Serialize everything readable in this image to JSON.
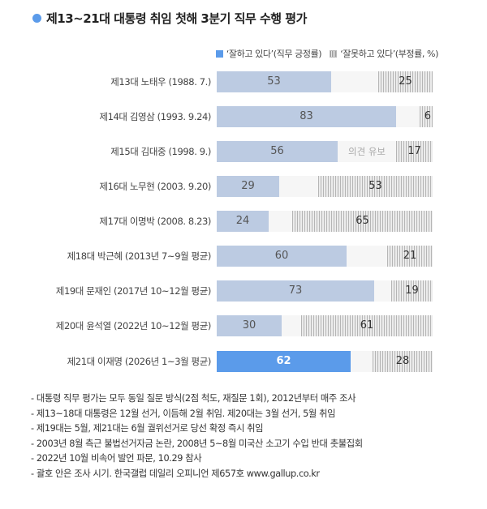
{
  "title": "제13~21대 대통령 취임 첫해 3분기 직무 수행 평가",
  "legend": {
    "positive": "‘잘하고 있다’(직무 긍정률)",
    "negative": "‘잘못하고 있다’(부정률, %)"
  },
  "undecided_label": "의견 유보",
  "colors": {
    "positive": "#bccbe2",
    "positive_current": "#5b9bea",
    "negative_hatch": "#b5b5b5",
    "title_dot": "#5b9bea"
  },
  "chart_data": {
    "type": "bar",
    "orientation": "horizontal-stacked",
    "title": "제13~21대 대통령 취임 첫해 3분기 직무 수행 평가",
    "xlabel": "",
    "ylabel": "",
    "xlim": [
      0,
      100
    ],
    "grid": false,
    "legend_position": "top-right",
    "categories": [
      "제13대 노태우 (1988. 7.)",
      "제14대 김영삼 (1993. 9.24)",
      "제15대 김대중 (1998. 9.)",
      "제16대 노무현 (2003. 9.20)",
      "제17대 이명박 (2008. 8.23)",
      "제18대 박근혜 (2013년 7~9월 평균)",
      "제19대 문재인 (2017년 10~12월 평균)",
      "제20대 윤석열 (2022년 10~12월 평균)",
      "제21대 이재명 (2026년 1~3월 평균)"
    ],
    "series": [
      {
        "name": "‘잘하고 있다’(직무 긍정률)",
        "values": [
          53,
          83,
          56,
          29,
          24,
          60,
          73,
          30,
          62
        ]
      },
      {
        "name": "의견 유보",
        "values": [
          22,
          11,
          27,
          18,
          11,
          19,
          8,
          9,
          10
        ]
      },
      {
        "name": "‘잘못하고 있다’(부정률, %)",
        "values": [
          25,
          6,
          17,
          53,
          65,
          21,
          19,
          61,
          28
        ]
      }
    ],
    "annotations": [
      "의견 유보"
    ]
  },
  "rows": [
    {
      "label": "제13대 노태우 (1988. 7.)",
      "pos": "53",
      "neg": "25"
    },
    {
      "label": "제14대 김영삼 (1993. 9.24)",
      "pos": "83",
      "neg": "6"
    },
    {
      "label": "제15대 김대중 (1998. 9.)",
      "pos": "56",
      "neg": "17"
    },
    {
      "label": "제16대 노무현 (2003. 9.20)",
      "pos": "29",
      "neg": "53"
    },
    {
      "label": "제17대 이명박 (2008. 8.23)",
      "pos": "24",
      "neg": "65"
    },
    {
      "label": "제18대 박근혜 (2013년 7~9월 평균)",
      "pos": "60",
      "neg": "21"
    },
    {
      "label": "제19대 문재인 (2017년 10~12월 평균)",
      "pos": "73",
      "neg": "19"
    },
    {
      "label": "제20대 윤석열 (2022년 10~12월 평균)",
      "pos": "30",
      "neg": "61"
    },
    {
      "label": "제21대 이재명 (2026년 1~3월 평균)",
      "pos": "62",
      "neg": "28"
    }
  ],
  "notes": [
    "- 대통령 직무 평가는 모두 동일 질문 방식(2점 척도, 재질문 1회), 2012년부터 매주 조사",
    "- 제13~18대 대통령은 12월 선거, 이듬해 2월 취임. 제20대는 3월 선거, 5월 취임",
    "- 제19대는 5월, 제21대는 6월 궐위선거로 당선 확정 즉시 취임",
    "- 2003년 8월 측근 불법선거자금 논란, 2008년 5~8월 미국산 소고기 수입 반대 촛불집회",
    "- 2022년 10월 비속어 발언 파문, 10.29 참사",
    "- 괄호 안은 조사 시기. 한국갤럽 데일리 오피니언 제657호 www.gallup.co.kr"
  ]
}
